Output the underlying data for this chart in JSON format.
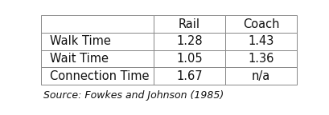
{
  "col_labels": [
    "Rail",
    "Coach"
  ],
  "row_labels": [
    "Walk Time",
    "Wait Time",
    "Connection Time"
  ],
  "values": [
    [
      "1.28",
      "1.43"
    ],
    [
      "1.05",
      "1.36"
    ],
    [
      "1.67",
      "n/a"
    ]
  ],
  "source_text": "Source: Fowkes and Johnson (1985)",
  "background_color": "#ffffff",
  "edge_color": "#888888",
  "text_color": "#111111",
  "font_size": 10.5,
  "source_font_size": 9.0
}
